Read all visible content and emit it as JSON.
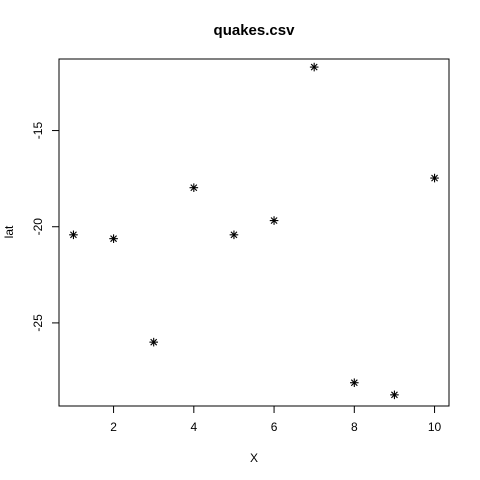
{
  "chart_data": {
    "type": "scatter",
    "title": "quakes.csv",
    "xlabel": "X",
    "ylabel": "lat",
    "xlim": [
      0.64,
      10.36
    ],
    "ylim": [
      -29.32,
      -11.28
    ],
    "x_ticks": [
      2,
      4,
      6,
      8,
      10
    ],
    "y_ticks": [
      -15,
      -20,
      -25
    ],
    "marker": "asterisk",
    "grid": false,
    "series": [
      {
        "x": [
          1,
          2,
          3,
          4,
          5,
          6,
          7,
          8,
          9,
          10
        ],
        "y": [
          -20.42,
          -20.62,
          -26.0,
          -17.97,
          -20.42,
          -19.68,
          -11.7,
          -28.11,
          -28.74,
          -17.47
        ]
      }
    ]
  }
}
